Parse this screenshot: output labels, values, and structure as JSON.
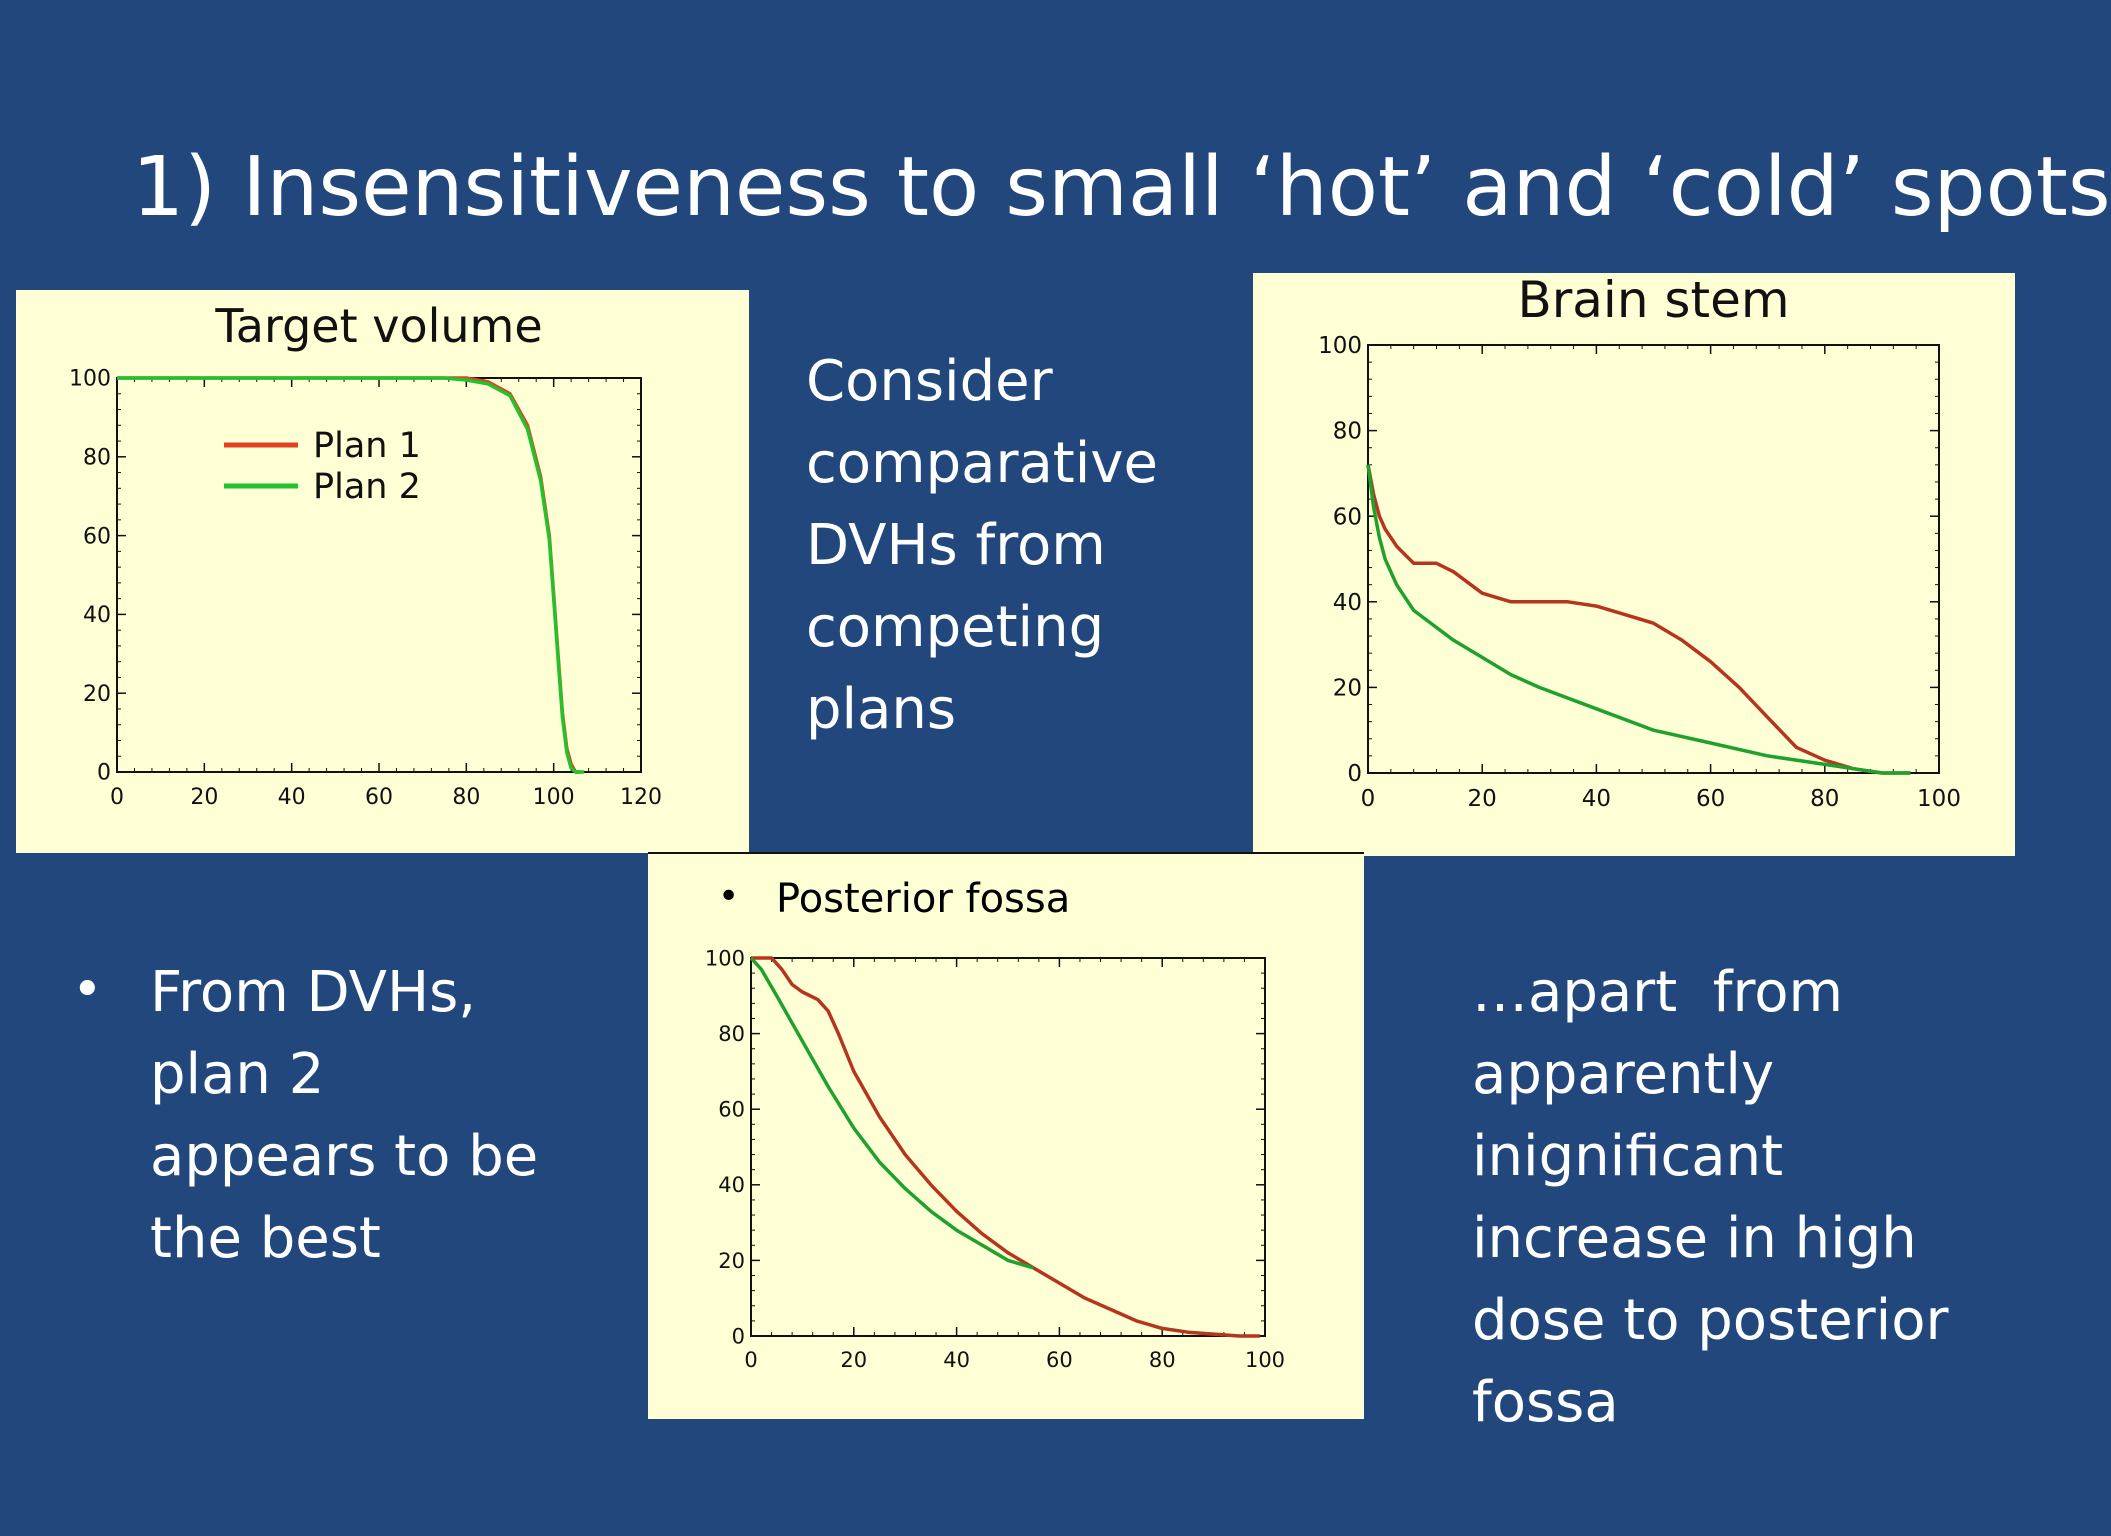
{
  "slide": {
    "title": "1) Insensitiveness to small ‘hot’ and ‘cold’ spots",
    "consider_text": [
      "Consider",
      "comparative",
      "DVHs from",
      "competing",
      "plans"
    ],
    "from_bullet": "•",
    "from_text": [
      "From DVHs,",
      "plan 2",
      "appears to be",
      "the best"
    ],
    "apart_text": [
      "…apart  from",
      "apparently",
      "inignificant",
      "increase in high",
      "dose to posterior",
      "fossa"
    ],
    "fossa_bullet": "•",
    "fossa_label": "Posterior fossa"
  },
  "colors": {
    "background": "#22477c",
    "panel": "#ffffd6",
    "plan1": "#b5351f",
    "plan2": "#1fa12e"
  },
  "chart_data": [
    {
      "id": "target",
      "type": "line",
      "title": "Target volume",
      "xlim": [
        0,
        120
      ],
      "ylim": [
        0,
        100
      ],
      "xticks": [
        0,
        20,
        40,
        60,
        80,
        100,
        120
      ],
      "yticks": [
        0,
        20,
        40,
        60,
        80,
        100
      ],
      "legend": {
        "placement": "top-left"
      },
      "series": [
        {
          "name": "Plan 1",
          "color": "#e2411f",
          "x": [
            0,
            75,
            80,
            85,
            90,
            94,
            97,
            99,
            100,
            101,
            102,
            103,
            104,
            105,
            106
          ],
          "y": [
            100,
            100,
            100,
            99,
            96,
            88,
            75,
            60,
            45,
            30,
            15,
            6,
            2,
            0,
            0
          ]
        },
        {
          "name": "Plan 2",
          "color": "#22c22c",
          "x": [
            0,
            75,
            80,
            85,
            90,
            94,
            97,
            99,
            100,
            101,
            102,
            103,
            104,
            105,
            107
          ],
          "y": [
            100,
            100,
            99.5,
            98.5,
            95.5,
            87,
            74,
            59,
            44,
            29,
            14,
            5,
            1,
            0,
            0
          ]
        }
      ]
    },
    {
      "id": "brainstem",
      "type": "line",
      "title": "Brain stem",
      "xlim": [
        0,
        100
      ],
      "ylim": [
        0,
        100
      ],
      "xticks": [
        0,
        20,
        40,
        60,
        80,
        100
      ],
      "yticks": [
        0,
        20,
        40,
        60,
        80,
        100
      ],
      "series": [
        {
          "name": "",
          "color": "#b5351f",
          "x": [
            0,
            1,
            2,
            3,
            5,
            8,
            12,
            15,
            18,
            20,
            25,
            30,
            35,
            40,
            45,
            50,
            55,
            60,
            65,
            70,
            75,
            80,
            85,
            90,
            95
          ],
          "y": [
            72,
            65,
            60,
            57,
            53,
            49,
            49,
            47,
            44,
            42,
            40,
            40,
            40,
            39,
            37,
            35,
            31,
            26,
            20,
            13,
            6,
            3,
            1,
            0,
            0
          ]
        },
        {
          "name": "",
          "color": "#1fa12e",
          "x": [
            0,
            1,
            2,
            3,
            5,
            8,
            12,
            15,
            20,
            25,
            30,
            40,
            50,
            60,
            70,
            80,
            85,
            90,
            95
          ],
          "y": [
            72,
            62,
            55,
            50,
            44,
            38,
            34,
            31,
            27,
            23,
            20,
            15,
            10,
            7,
            4,
            2,
            1,
            0,
            0
          ]
        }
      ]
    },
    {
      "id": "fossa",
      "type": "line",
      "title": "",
      "xlim": [
        0,
        100
      ],
      "ylim": [
        0,
        100
      ],
      "xticks": [
        0,
        20,
        40,
        60,
        80,
        100
      ],
      "yticks": [
        0,
        20,
        40,
        60,
        80,
        100
      ],
      "series": [
        {
          "name": "",
          "color": "#b5351f",
          "x": [
            0,
            4,
            6,
            8,
            10,
            13,
            15,
            17,
            20,
            25,
            30,
            35,
            40,
            45,
            50,
            55,
            60,
            65,
            70,
            75,
            80,
            85,
            90,
            95,
            99
          ],
          "y": [
            100,
            100,
            97,
            93,
            91,
            89,
            86,
            80,
            70,
            58,
            48,
            40,
            33,
            27,
            22,
            18,
            14,
            10,
            7,
            4,
            2,
            1,
            0.5,
            0,
            0
          ]
        },
        {
          "name": "",
          "color": "#1fa12e",
          "x": [
            0,
            2,
            5,
            10,
            15,
            20,
            25,
            30,
            35,
            40,
            45,
            50,
            55
          ],
          "y": [
            100,
            97,
            90,
            78,
            66,
            55,
            46,
            39,
            33,
            28,
            24,
            20,
            18
          ]
        }
      ]
    }
  ]
}
